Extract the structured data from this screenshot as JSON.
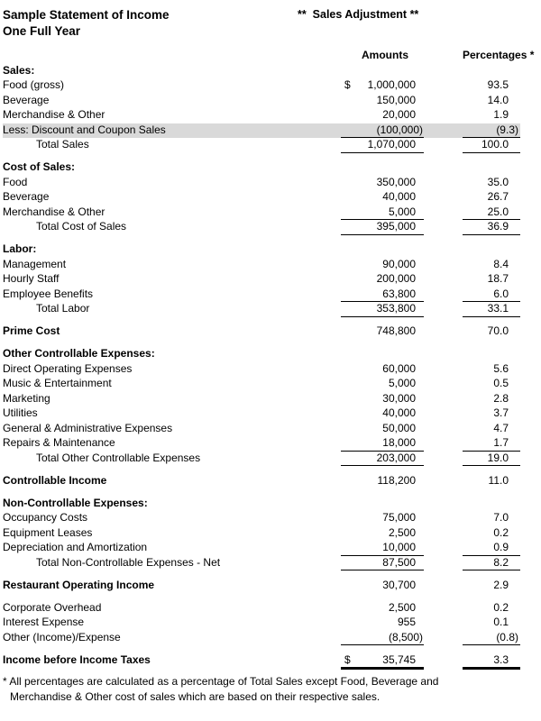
{
  "header": {
    "title_line1": "Sample Statement of Income",
    "title_line2": "One Full Year",
    "annotation": "**  Sales Adjustment **"
  },
  "columns": {
    "amounts": "Amounts",
    "percentages": "Percentages *"
  },
  "colors": {
    "background": "#ffffff",
    "text": "#000000",
    "highlight_row": "#d9d9d9"
  },
  "sections": [
    {
      "header": "Sales:",
      "rows": [
        {
          "label": "Food (gross)",
          "prefix": "$",
          "amount": "1,000,000",
          "pct": "93.5"
        },
        {
          "label": "Beverage",
          "amount": "150,000",
          "pct": "14.0"
        },
        {
          "label": "Merchandise & Other",
          "amount": "20,000",
          "pct": "1.9"
        },
        {
          "label": "Less: Discount and Coupon Sales",
          "amount": "(100,000)",
          "pct": "(9.3)",
          "highlight": true,
          "rule": "single"
        },
        {
          "label": "Total Sales",
          "indent": true,
          "amount": "1,070,000",
          "pct": "100.0",
          "rule": "single"
        }
      ]
    },
    {
      "header": "Cost of Sales:",
      "rows": [
        {
          "label": "Food",
          "amount": "350,000",
          "pct": "35.0"
        },
        {
          "label": "Beverage",
          "amount": "40,000",
          "pct": "26.7"
        },
        {
          "label": "Merchandise & Other",
          "amount": "5,000",
          "pct": "25.0",
          "rule": "single"
        },
        {
          "label": "Total Cost of Sales",
          "indent": true,
          "amount": "395,000",
          "pct": "36.9",
          "rule": "single"
        }
      ]
    },
    {
      "header": "Labor:",
      "rows": [
        {
          "label": "Management",
          "amount": "90,000",
          "pct": "8.4"
        },
        {
          "label": "Hourly Staff",
          "amount": "200,000",
          "pct": "18.7"
        },
        {
          "label": "Employee Benefits",
          "amount": "63,800",
          "pct": "6.0",
          "rule": "single"
        },
        {
          "label": "Total Labor",
          "indent": true,
          "amount": "353,800",
          "pct": "33.1",
          "rule": "single"
        }
      ]
    },
    {
      "rows": [
        {
          "label": "Prime Cost",
          "bold": true,
          "amount": "748,800",
          "pct": "70.0"
        }
      ]
    },
    {
      "header": "Other Controllable Expenses:",
      "rows": [
        {
          "label": "Direct Operating Expenses",
          "amount": "60,000",
          "pct": "5.6"
        },
        {
          "label": "Music & Entertainment",
          "amount": "5,000",
          "pct": "0.5"
        },
        {
          "label": "Marketing",
          "amount": "30,000",
          "pct": "2.8"
        },
        {
          "label": "Utilities",
          "amount": "40,000",
          "pct": "3.7"
        },
        {
          "label": "General & Administrative Expenses",
          "amount": "50,000",
          "pct": "4.7"
        },
        {
          "label": "Repairs & Maintenance",
          "amount": "18,000",
          "pct": "1.7",
          "rule": "single"
        },
        {
          "label": "Total Other Controllable Expenses",
          "indent": true,
          "amount": "203,000",
          "pct": "19.0",
          "rule": "single"
        }
      ]
    },
    {
      "rows": [
        {
          "label": "Controllable Income",
          "bold": true,
          "amount": "118,200",
          "pct": "11.0"
        }
      ]
    },
    {
      "header": "Non-Controllable Expenses:",
      "rows": [
        {
          "label": "Occupancy Costs",
          "amount": "75,000",
          "pct": "7.0"
        },
        {
          "label": "Equipment Leases",
          "amount": "2,500",
          "pct": "0.2"
        },
        {
          "label": "Depreciation and Amortization",
          "amount": "10,000",
          "pct": "0.9",
          "rule": "single"
        },
        {
          "label": "Total Non-Controllable Expenses - Net",
          "indent": true,
          "amount": "87,500",
          "pct": "8.2",
          "rule": "single"
        }
      ]
    },
    {
      "rows": [
        {
          "label": "Restaurant Operating Income",
          "bold": true,
          "amount": "30,700",
          "pct": "2.9"
        }
      ]
    },
    {
      "rows": [
        {
          "label": "Corporate Overhead",
          "amount": "2,500",
          "pct": "0.2"
        },
        {
          "label": "Interest Expense",
          "amount": "955",
          "pct": "0.1"
        },
        {
          "label": "Other (Income)/Expense",
          "amount": "(8,500)",
          "pct": "(0.8)",
          "rule": "single"
        }
      ]
    },
    {
      "rows": [
        {
          "label": "Income before Income Taxes",
          "bold": true,
          "prefix": "$",
          "amount": "35,745",
          "pct": "3.3",
          "rule": "thick"
        }
      ]
    }
  ],
  "footnote": {
    "line1": "* All percentages are calculated as a percentage of Total Sales except Food, Beverage and",
    "line2": "Merchandise & Other cost of sales which are based on their respective sales."
  }
}
